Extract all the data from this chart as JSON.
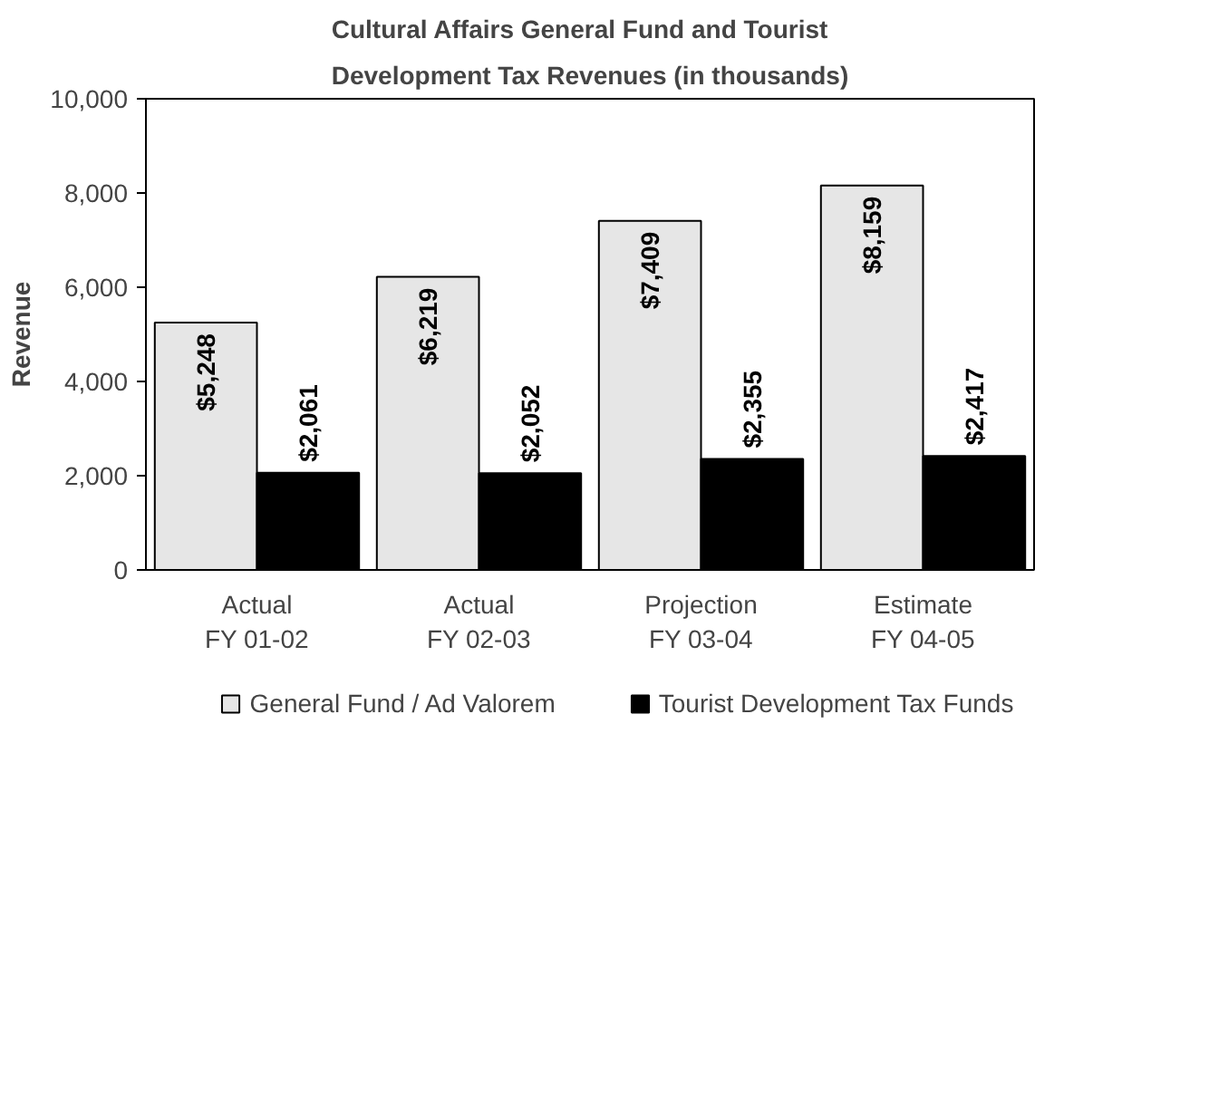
{
  "chart_data": {
    "type": "bar",
    "title": "Cultural Affairs General Fund and Tourist Development Tax Revenues (in thousands)",
    "ylabel": "Revenue",
    "categories": [
      "Actual FY 01-02",
      "Actual FY 02-03",
      "Projection FY 03-04",
      "Estimate FY 04-05"
    ],
    "series": [
      {
        "name": "General Fund / Ad Valorem",
        "color": "#e6e6e6",
        "values": [
          5248,
          6219,
          7409,
          8159
        ],
        "value_labels": [
          "$5,248",
          "$6,219",
          "$7,409",
          "$8,159"
        ]
      },
      {
        "name": "Tourist Development Tax Funds",
        "color": "#000000",
        "values": [
          2061,
          2052,
          2355,
          2417
        ],
        "value_labels": [
          "$2,061",
          "$2,052",
          "$2,355",
          "$2,417"
        ]
      }
    ],
    "ylim": [
      0,
      10000
    ],
    "yticks": [
      0,
      {
        "value": 2000,
        "label": "2,000"
      },
      {
        "value": 4000,
        "label": "4,000"
      },
      {
        "value": 6000,
        "label": "6,000"
      },
      {
        "value": 8000,
        "label": "8,000"
      },
      {
        "value": 10000,
        "label": "10,000"
      }
    ],
    "grid": false,
    "legend": "bottom"
  }
}
